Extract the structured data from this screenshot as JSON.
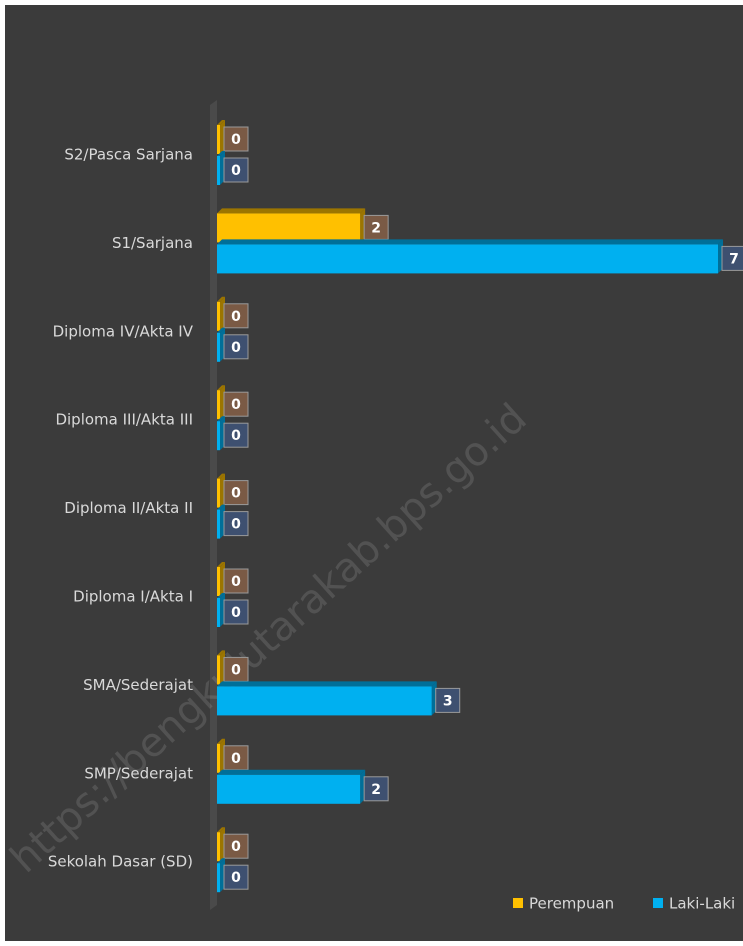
{
  "chart_data": {
    "type": "bar",
    "orientation": "horizontal",
    "categories": [
      "S2/Pasca Sarjana",
      "S1/Sarjana",
      "Diploma IV/Akta IV",
      "Diploma III/Akta III",
      "Diploma II/Akta II",
      "Diploma I/Akta I",
      "SMA/Sederajat",
      "SMP/Sederajat",
      "Sekolah Dasar (SD)"
    ],
    "series": [
      {
        "name": "Perempuan",
        "color": "#ffc000",
        "values": [
          0,
          2,
          0,
          0,
          0,
          0,
          0,
          0,
          0
        ]
      },
      {
        "name": "Laki-Laki",
        "color": "#00b0f0",
        "values": [
          0,
          7,
          0,
          0,
          0,
          0,
          3,
          2,
          0
        ]
      }
    ],
    "xlim": [
      0,
      7
    ],
    "legend": "bottom-right",
    "watermark": "https://bengkulutarakab.bps.go.id"
  }
}
